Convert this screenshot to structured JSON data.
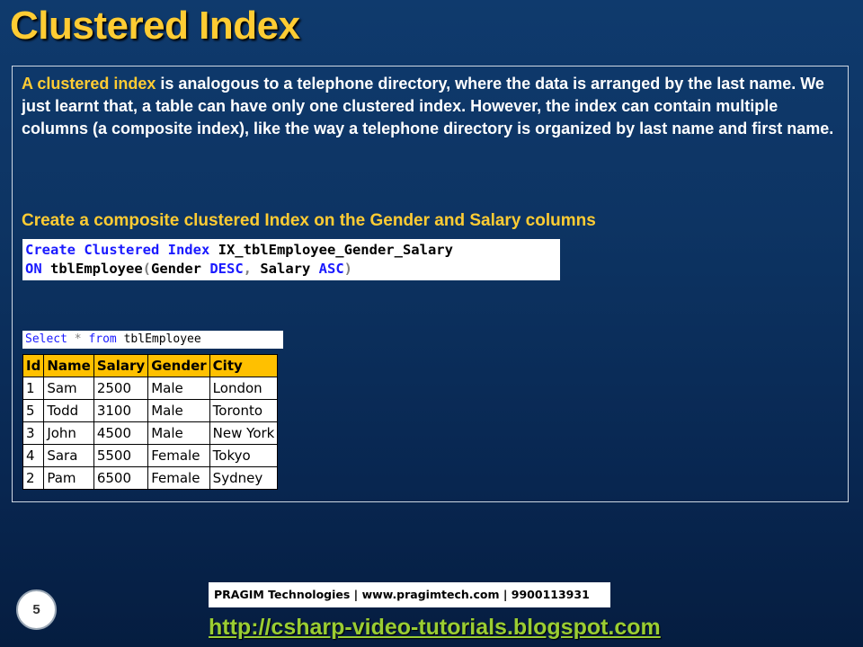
{
  "slide": {
    "title": "Clustered Index",
    "number": "5"
  },
  "intro": {
    "highlight": "A clustered index",
    "text": " is analogous to a telephone directory, where the data is arranged by the last name. We just learnt that, a table can have only one clustered index. However, the index can contain multiple columns (a composite index), like the way a telephone directory is organized by last name and first name."
  },
  "subheading": "Create a composite clustered Index on the Gender and Salary columns",
  "code": {
    "line1_kw": "Create Clustered Index",
    "line1_rest": " IX_tblEmployee_Gender_Salary",
    "line2_kw": "ON",
    "line2_table": " tblEmployee",
    "line2_open": "(",
    "line2_col1": "Gender ",
    "line2_dir1": "DESC",
    "line2_comma": ",",
    "line2_col2": " Salary ",
    "line2_dir2": "ASC",
    "line2_close": ")"
  },
  "query": {
    "kw_select": "Select",
    "star": " * ",
    "kw_from": "from",
    "table": " tblEmployee"
  },
  "results": {
    "columns": [
      "Id",
      "Name",
      "Salary",
      "Gender",
      "City"
    ],
    "rows": [
      [
        "1",
        "Sam",
        "2500",
        "Male",
        "London"
      ],
      [
        "5",
        "Todd",
        "3100",
        "Male",
        "Toronto"
      ],
      [
        "3",
        "John",
        "4500",
        "Male",
        "New York"
      ],
      [
        "4",
        "Sara",
        "5500",
        "Female",
        "Tokyo"
      ],
      [
        "2",
        "Pam",
        "6500",
        "Female",
        "Sydney"
      ]
    ]
  },
  "footer": {
    "company": "PRAGIM Technologies | www.pragimtech.com | 9900113931",
    "url": "http://csharp-video-tutorials.blogspot.com"
  }
}
